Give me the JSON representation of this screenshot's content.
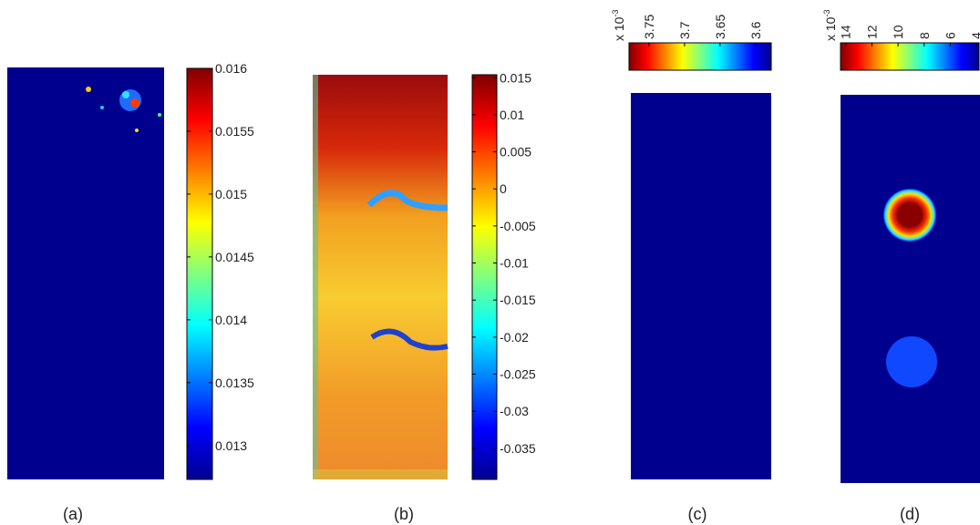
{
  "panels": [
    {
      "label": "(a)",
      "colorbar": {
        "orientation": "vertical",
        "lim": [
          0.01273,
          0.016
        ],
        "ticks": [
          0.016,
          0.0155,
          0.015,
          0.0145,
          0.014,
          0.0135,
          0.013
        ]
      }
    },
    {
      "label": "(b)",
      "colorbar": {
        "orientation": "vertical",
        "lim": [
          -0.0392,
          0.0154
        ],
        "ticks": [
          0.015,
          0.01,
          0.005,
          0,
          -0.005,
          -0.01,
          -0.015,
          -0.02,
          -0.025,
          -0.03,
          -0.035
        ]
      }
    },
    {
      "label": "(c)",
      "colorbar": {
        "orientation": "horizontal",
        "lim": [
          3.778,
          3.578
        ],
        "ticks": [
          3.75,
          3.7,
          3.65,
          3.6
        ],
        "multiplier": "x 10",
        "exponent": "-3"
      }
    },
    {
      "label": "(d)",
      "colorbar": {
        "orientation": "horizontal",
        "lim": [
          14.4,
          3.8
        ],
        "ticks": [
          14,
          12,
          10,
          8,
          6,
          4
        ],
        "multiplier": "x 10",
        "exponent": "-3"
      }
    }
  ]
}
